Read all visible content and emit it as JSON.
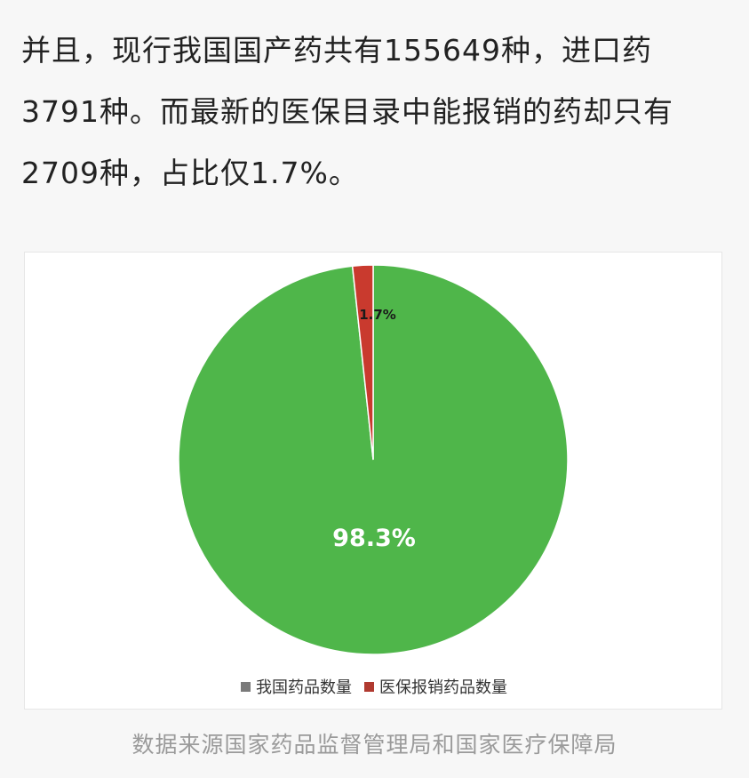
{
  "article": {
    "lines": [
      "并且，现行我国国产药共有155649种，进口药",
      "3791种。而最新的医保目录中能报销的药却只有",
      "2709种，占比仅1.7%。"
    ]
  },
  "chart_data": {
    "type": "pie",
    "slices": [
      {
        "name": "我国药品数量",
        "value": 98.3,
        "label": "98.3%",
        "color": "#4fb64a",
        "legend_color": "#7a7a7a"
      },
      {
        "name": "医保报销药品数量",
        "value": 1.7,
        "label": "1.7%",
        "color": "#c93a2e",
        "legend_color": "#b03a30"
      }
    ],
    "legend_placement": "bottom",
    "title": ""
  },
  "source": "数据来源国家药品监督管理局和国家医疗保障局"
}
